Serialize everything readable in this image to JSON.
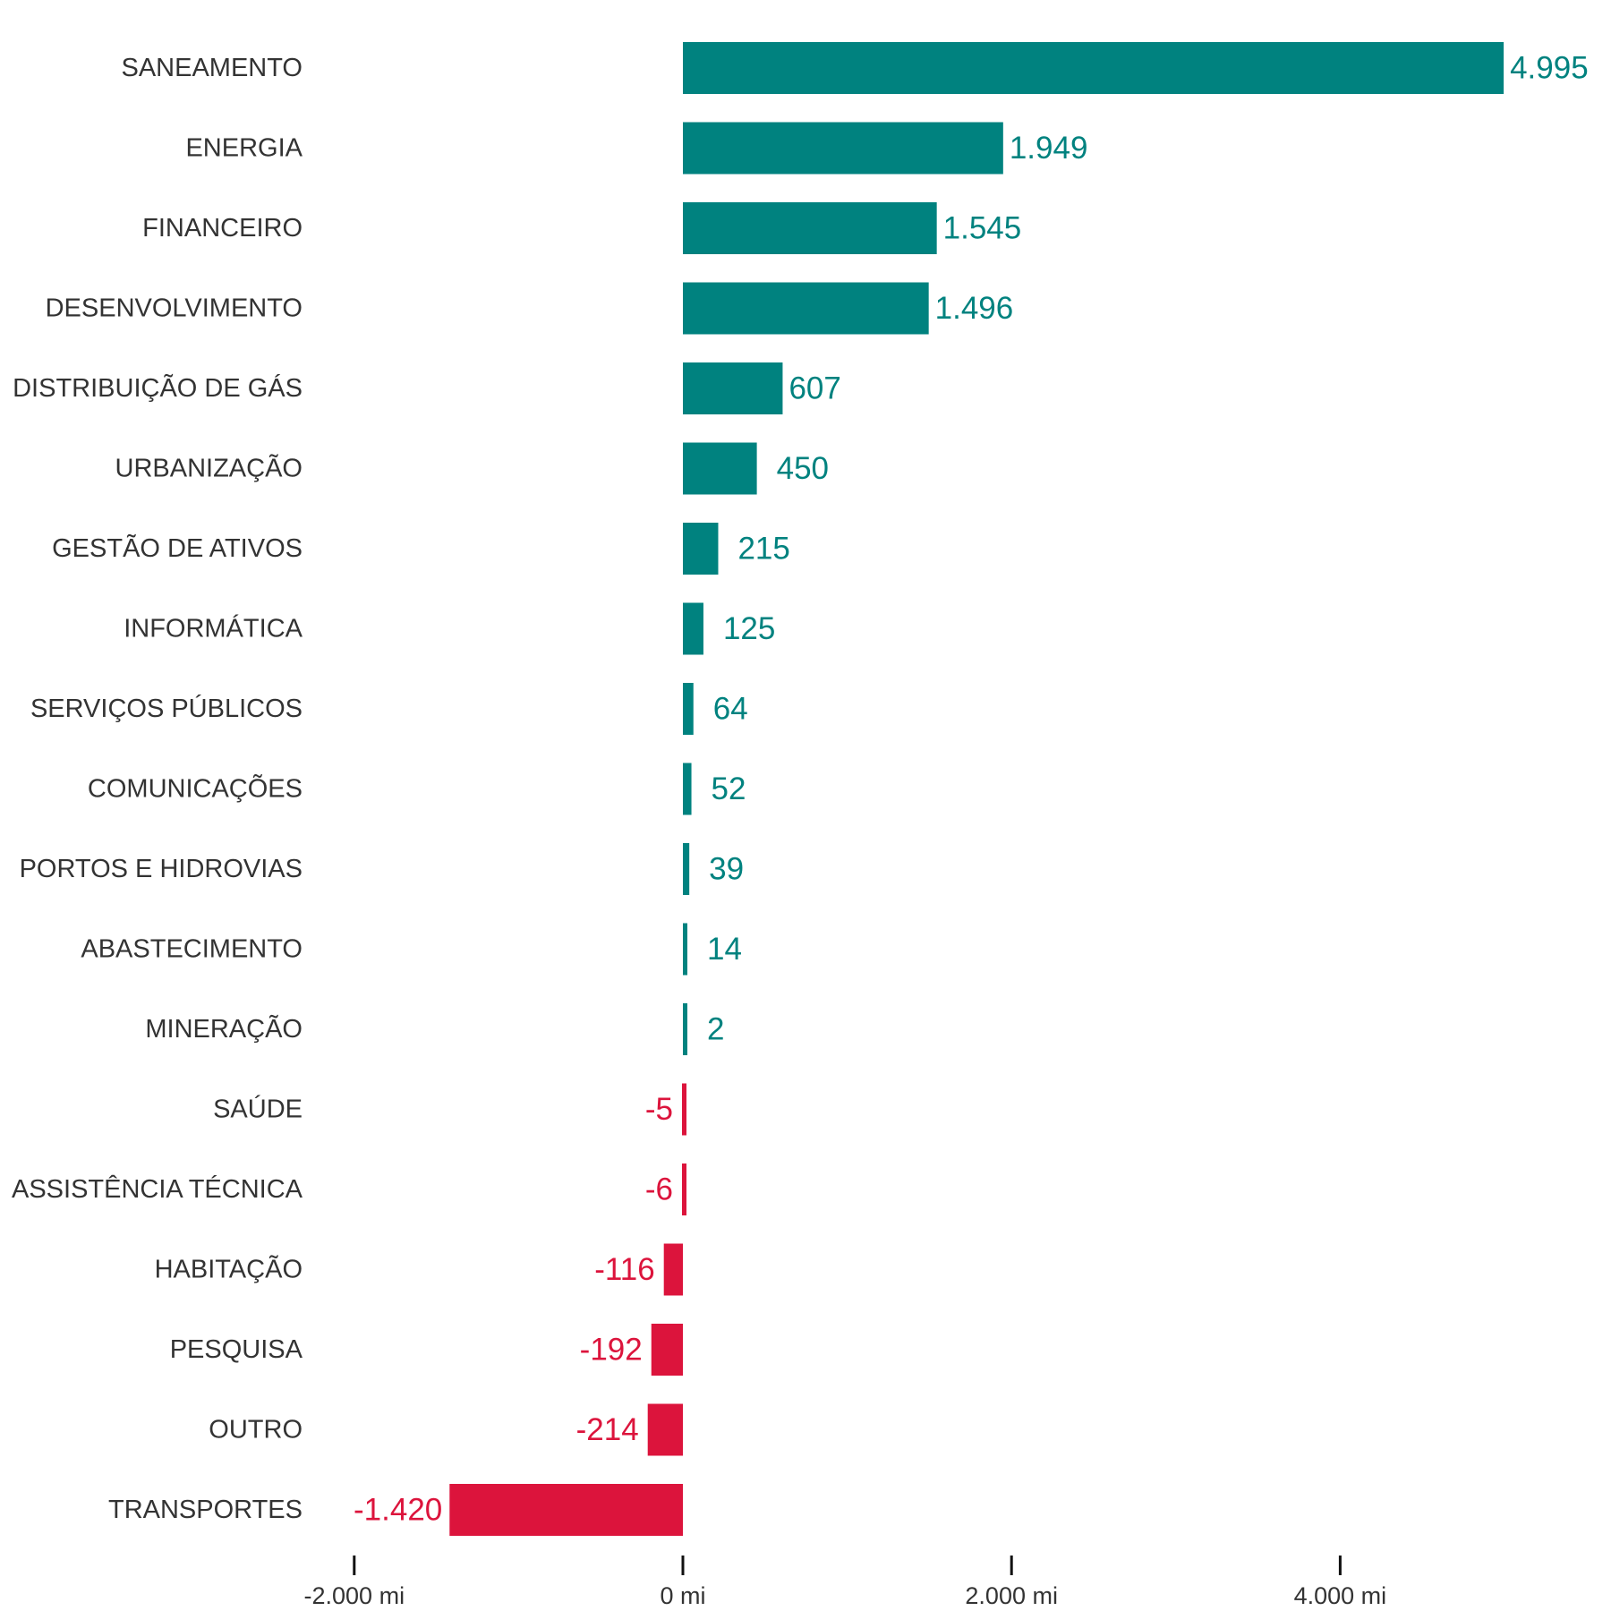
{
  "chart_data": {
    "type": "bar",
    "orientation": "horizontal",
    "categories": [
      "SANEAMENTO",
      "ENERGIA",
      "FINANCEIRO",
      "DESENVOLVIMENTO",
      "DISTRIBUIÇÃO DE GÁS",
      "URBANIZAÇÃO",
      "GESTÃO DE ATIVOS",
      "INFORMÁTICA",
      "SERVIÇOS PÚBLICOS",
      "COMUNICAÇÕES",
      "PORTOS E HIDROVIAS",
      "ABASTECIMENTO",
      "MINERAÇÃO",
      "SAÚDE",
      "ASSISTÊNCIA TÉCNICA",
      "HABITAÇÃO",
      "PESQUISA",
      "OUTRO",
      "TRANSPORTES"
    ],
    "values": [
      4995,
      1949,
      1545,
      1496,
      607,
      450,
      215,
      125,
      64,
      52,
      39,
      14,
      2,
      -5,
      -6,
      -116,
      -192,
      -214,
      -1420
    ],
    "value_labels": [
      "4.995",
      "1.949",
      "1.545",
      "1.496",
      "607",
      "450",
      "215",
      "125",
      "64",
      "52",
      "39",
      "14",
      "2",
      "-5",
      "-6",
      "-116",
      "-192",
      "-214",
      "-1.420"
    ],
    "xlim": [
      -2000,
      5000
    ],
    "x_ticks": [
      -2000,
      0,
      2000,
      4000
    ],
    "x_tick_labels": [
      "-2.000 mi",
      "0 mi",
      "2.000 mi",
      "4.000 mi"
    ],
    "title": "",
    "xlabel": "",
    "ylabel": "",
    "grid": false,
    "legend": "none",
    "colors": {
      "positive": "#00827F",
      "negative": "#DC143C"
    }
  }
}
